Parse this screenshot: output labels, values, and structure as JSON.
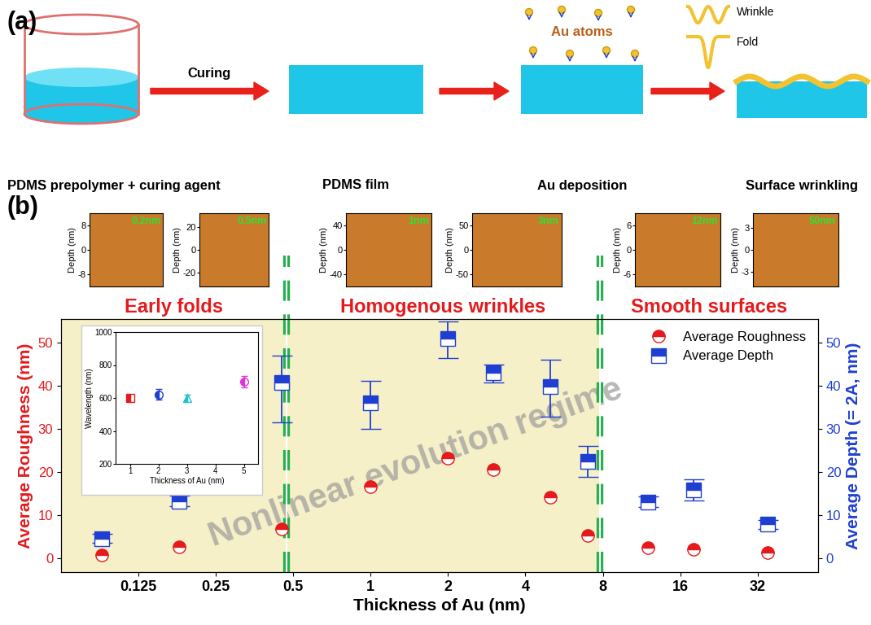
{
  "panel_labels": {
    "a": "(a)",
    "b": "(b)"
  },
  "schematic": {
    "steps": [
      "PDMS prepolymer + curing agent",
      "PDMS film",
      "Au deposition",
      "Surface wrinkling"
    ],
    "arrow_label": "Curing",
    "atoms_label": "Au atoms",
    "shapes": [
      "Wrinkle",
      "Fold"
    ]
  },
  "afm_images": {
    "ylabel": "Depth (nm)",
    "images": [
      {
        "label": "0.2nm",
        "ylim": [
          -12,
          12
        ],
        "yticks": [
          -8,
          0,
          8
        ]
      },
      {
        "label": "0.5nm",
        "ylim": [
          -32,
          32
        ],
        "yticks": [
          -20,
          0,
          20
        ]
      },
      {
        "label": "1nm",
        "ylim": [
          -60,
          60
        ],
        "yticks": [
          -40,
          0,
          40
        ]
      },
      {
        "label": "3nm",
        "ylim": [
          -75,
          75
        ],
        "yticks": [
          -50,
          0,
          50
        ]
      },
      {
        "label": "12nm",
        "ylim": [
          -9,
          9
        ],
        "yticks": [
          -6,
          0,
          6
        ]
      },
      {
        "label": "50nm",
        "ylim": [
          -5,
          5
        ],
        "yticks": [
          -3,
          0,
          3
        ]
      }
    ]
  },
  "regimes": {
    "labels": [
      "Early folds",
      "Homogenous wrinkles",
      "Smooth surfaces"
    ],
    "boundaries": [
      0.47,
      7.8
    ],
    "watermark": "Nonlinear evolution regime"
  },
  "chart_data": [
    {
      "type": "scatter",
      "xlabel": "Thickness of Au (nm)",
      "ylabel": "Average Roughness (nm)",
      "y2label": "Average Depth (= 2A, nm)",
      "log": "x",
      "legend": "upper right",
      "x": [
        0.09,
        0.18,
        0.45,
        1,
        2,
        3,
        5,
        7,
        12,
        18,
        35
      ],
      "xlim": [
        0.0625,
        55
      ],
      "xticks": [
        0.125,
        0.25,
        0.5,
        1,
        2,
        4,
        8,
        16,
        32
      ],
      "ylim": [
        -3.3,
        55.5
      ],
      "yticks": [
        0,
        10,
        20,
        30,
        40,
        50
      ],
      "y2lim": [
        -3.3,
        55.5
      ],
      "y2ticks": [
        0,
        10,
        20,
        30,
        40,
        50
      ],
      "series": [
        {
          "name": "Average Roughness",
          "color": "#e41a1c",
          "marker": "circle",
          "values": [
            0.6,
            2.5,
            6.7,
            16.5,
            23.1,
            20.5,
            14.0,
            5.3,
            2.4,
            2.0,
            1.3
          ],
          "lower": [
            0.2,
            2.0,
            6.2,
            15.8,
            22.3,
            19.8,
            13.3,
            4.8,
            2.0,
            1.6,
            1.0
          ],
          "upper": [
            1.0,
            3.0,
            7.2,
            17.2,
            23.9,
            21.2,
            14.7,
            5.8,
            2.8,
            2.4,
            1.6
          ]
        },
        {
          "name": "Average Depth",
          "color": "#1f3fd0",
          "marker": "square",
          "axis": "y2",
          "values": [
            4.5,
            13.1,
            40.8,
            36.0,
            51.0,
            43.0,
            39.8,
            22.5,
            13.0,
            15.8,
            7.8
          ],
          "lower": [
            3.5,
            12.0,
            31.5,
            30.0,
            46.5,
            40.8,
            32.8,
            18.8,
            11.8,
            13.3,
            6.8
          ],
          "upper": [
            5.5,
            14.5,
            47.0,
            41.2,
            55.0,
            45.0,
            46.0,
            26.0,
            14.2,
            18.2,
            8.8
          ]
        }
      ]
    },
    {
      "type": "scatter",
      "xlabel": "Thickness of Au (nm)",
      "ylabel": "Wavelength (nm)",
      "x": [
        1,
        2,
        3,
        5
      ],
      "values": [
        600,
        622,
        600,
        700
      ],
      "errors": [
        12,
        30,
        18,
        35
      ],
      "colors": [
        "#e41a1c",
        "#1f3fd0",
        "#22c0d0",
        "#e030e0"
      ],
      "xlim": [
        0.5,
        5.5
      ],
      "xticks": [
        1,
        2,
        3,
        4,
        5
      ],
      "ylim": [
        200,
        1000
      ],
      "yticks": [
        200,
        400,
        600,
        800,
        1000
      ]
    }
  ]
}
